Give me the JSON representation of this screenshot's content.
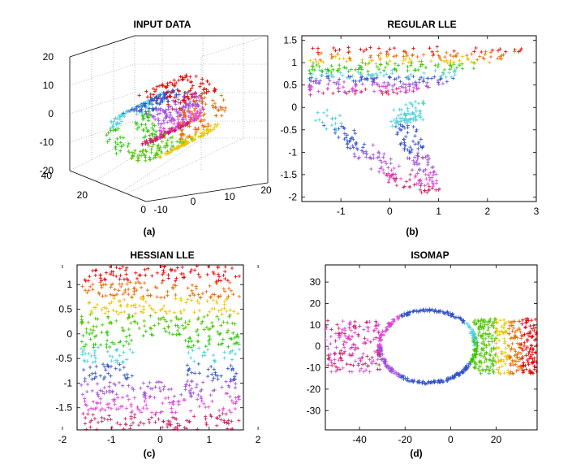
{
  "figure": {
    "panels": [
      {
        "title": "INPUT DATA",
        "caption": "(a)"
      },
      {
        "title": "REGULAR LLE",
        "caption": "(b)"
      },
      {
        "title": "HESSIAN LLE",
        "caption": "(c)"
      },
      {
        "title": "ISOMAP",
        "caption": "(d)"
      }
    ]
  },
  "colors": [
    "#e00000",
    "#e86a00",
    "#e8c400",
    "#4ec400",
    "#22c800",
    "#4fd0d8",
    "#3050c8",
    "#a24fd8",
    "#e040d8",
    "#c82060"
  ],
  "chart_data": [
    {
      "type": "scatter",
      "title": "INPUT DATA",
      "caption": "(a)",
      "projection": "3d",
      "xlim": [
        -10,
        20
      ],
      "ylim": [
        0,
        40
      ],
      "zlim": [
        -20,
        20
      ],
      "xticks": [
        "-10",
        "0",
        "10",
        "20"
      ],
      "yticks": [
        "0",
        "20",
        "40"
      ],
      "zticks": [
        "-20",
        "-10",
        "0",
        "10",
        "20"
      ],
      "grid": true,
      "series_description": "swiss roll with a hole, colored red→orange→yellow→green→cyan→blue→purple→magenta along the unrolled coordinate",
      "color_order": [
        "red",
        "orange",
        "yellow",
        "green",
        "cyan",
        "blue",
        "purple",
        "magenta"
      ]
    },
    {
      "type": "scatter",
      "title": "REGULAR LLE",
      "caption": "(b)",
      "xlim": [
        -1.8,
        3
      ],
      "ylim": [
        -2.1,
        1.6
      ],
      "xticks": [
        "-1",
        "0",
        "1",
        "2",
        "3"
      ],
      "yticks": [
        "1.5",
        "1",
        "0.5",
        "0",
        "-0.5",
        "-1",
        "-1.5",
        "-2"
      ],
      "grid": false
    },
    {
      "type": "scatter",
      "title": "HESSIAN LLE",
      "caption": "(c)",
      "xlim": [
        -1.7,
        1.7
      ],
      "ylim": [
        -1.95,
        1.4
      ],
      "xticks": [
        "-2",
        "-1",
        "0",
        "1",
        "2"
      ],
      "yticks": [
        "1",
        "0.5",
        "0",
        "-0.5",
        "-1",
        "-1.5"
      ],
      "grid": false
    },
    {
      "type": "scatter",
      "title": "ISOMAP",
      "caption": "(d)",
      "xlim": [
        -55,
        38
      ],
      "ylim": [
        -39,
        38
      ],
      "xticks": [
        "-40",
        "-20",
        "0",
        "20"
      ],
      "yticks": [
        "30",
        "20",
        "10",
        "0",
        "-10",
        "-20",
        "-30"
      ],
      "grid": false
    }
  ]
}
